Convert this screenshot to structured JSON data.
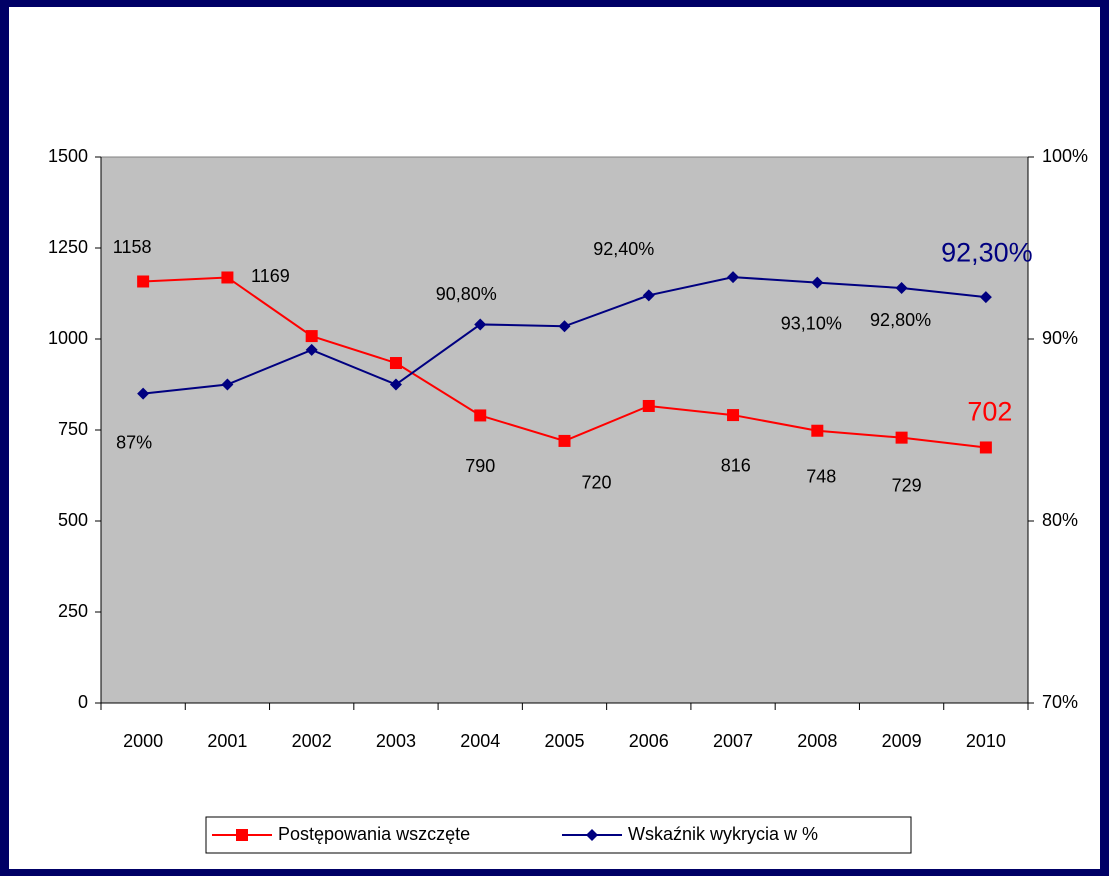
{
  "chart_data": {
    "type": "line",
    "categories": [
      "2000",
      "2001",
      "2002",
      "2003",
      "2004",
      "2005",
      "2006",
      "2007",
      "2008",
      "2009",
      "2010"
    ],
    "series": [
      {
        "name": "Postępowania wszczęte",
        "color": "#ff0000",
        "marker": "square",
        "values": [
          1158,
          1169,
          1008,
          934,
          790,
          720,
          816,
          791,
          748,
          729,
          702
        ],
        "value_labels": [
          "1158",
          "1169",
          null,
          null,
          "790",
          "720",
          "816",
          null,
          "748",
          "729",
          "702"
        ]
      },
      {
        "name": "Wskaźnik wykrycia w %",
        "color": "#000080",
        "marker": "diamond",
        "axis": "y2",
        "values": [
          87,
          87.5,
          89.4,
          87.5,
          90.8,
          90.7,
          92.4,
          93.4,
          93.1,
          92.8,
          92.3
        ],
        "value_labels": [
          "87%",
          null,
          null,
          null,
          "90,80%",
          null,
          "92,40%",
          null,
          "93,10%",
          "92,80%",
          "92,30%"
        ]
      }
    ],
    "ylim": [
      0,
      1500
    ],
    "yticks": [
      0,
      250,
      500,
      750,
      1000,
      1250,
      1500
    ],
    "y2lim": [
      70,
      100
    ],
    "y2ticks": [
      {
        "value": 70,
        "label": "70%"
      },
      {
        "value": 80,
        "label": "80%"
      },
      {
        "value": 90,
        "label": "90%"
      },
      {
        "value": 100,
        "label": "100%"
      }
    ],
    "legend": "bottom"
  }
}
